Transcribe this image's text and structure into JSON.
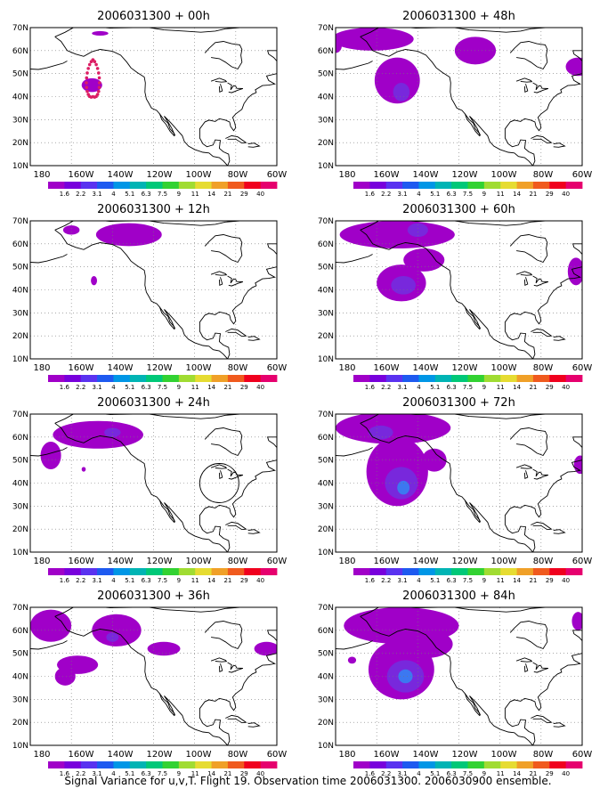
{
  "panels": [
    {
      "title": "2006031300 + 00h",
      "blobs": [
        {
          "lon": -150,
          "lat": 45,
          "rx": 5,
          "ry": 3,
          "lvl": 0
        },
        {
          "lon": -146,
          "lat": 67.5,
          "rx": 4,
          "ry": 1,
          "lvl": 0
        }
      ],
      "track": true
    },
    {
      "title": "2006031300 + 12h",
      "blobs": [
        {
          "lon": -132,
          "lat": 64,
          "rx": 16,
          "ry": 5,
          "lvl": 0
        },
        {
          "lon": -160,
          "lat": 66,
          "rx": 4,
          "ry": 2,
          "lvl": 0
        },
        {
          "lon": -149,
          "lat": 44,
          "rx": 1.5,
          "ry": 2,
          "lvl": 0
        }
      ]
    },
    {
      "title": "2006031300 + 24h",
      "blobs": [
        {
          "lon": -147,
          "lat": 61,
          "rx": 22,
          "ry": 6,
          "lvl": 0
        },
        {
          "lon": -140,
          "lat": 62,
          "rx": 4,
          "ry": 2,
          "lvl": 1
        },
        {
          "lon": -170,
          "lat": 52,
          "rx": 5,
          "ry": 6,
          "lvl": 0
        },
        {
          "lon": -154,
          "lat": 46,
          "rx": 1,
          "ry": 1,
          "lvl": 0
        }
      ],
      "circle": true
    },
    {
      "title": "2006031300 + 36h",
      "blobs": [
        {
          "lon": -170,
          "lat": 62,
          "rx": 10,
          "ry": 7,
          "lvl": 0
        },
        {
          "lon": -138,
          "lat": 60,
          "rx": 12,
          "ry": 7,
          "lvl": 0
        },
        {
          "lon": -140,
          "lat": 57,
          "rx": 3,
          "ry": 2,
          "lvl": 1
        },
        {
          "lon": -157,
          "lat": 45,
          "rx": 10,
          "ry": 4,
          "lvl": 0
        },
        {
          "lon": -163,
          "lat": 40,
          "rx": 5,
          "ry": 4,
          "lvl": 0
        },
        {
          "lon": -115,
          "lat": 52,
          "rx": 8,
          "ry": 3,
          "lvl": 0
        },
        {
          "lon": -65,
          "lat": 52,
          "rx": 6,
          "ry": 3,
          "lvl": 0
        }
      ]
    },
    {
      "title": "2006031300 + 48h",
      "blobs": [
        {
          "lon": -162,
          "lat": 65,
          "rx": 20,
          "ry": 5,
          "lvl": 0
        },
        {
          "lon": -150,
          "lat": 47,
          "rx": 11,
          "ry": 10,
          "lvl": 0
        },
        {
          "lon": -148,
          "lat": 42,
          "rx": 4,
          "ry": 4,
          "lvl": 1
        },
        {
          "lon": -112,
          "lat": 60,
          "rx": 10,
          "ry": 6,
          "lvl": 0
        },
        {
          "lon": -62,
          "lat": 53,
          "rx": 6,
          "ry": 4,
          "lvl": 0
        },
        {
          "lon": -180,
          "lat": 62,
          "rx": 3,
          "ry": 3,
          "lvl": 0
        }
      ]
    },
    {
      "title": "2006031300 + 60h",
      "blobs": [
        {
          "lon": -150,
          "lat": 64,
          "rx": 28,
          "ry": 6,
          "lvl": 0
        },
        {
          "lon": -148,
          "lat": 43,
          "rx": 12,
          "ry": 8,
          "lvl": 0
        },
        {
          "lon": -147,
          "lat": 42,
          "rx": 6,
          "ry": 4,
          "lvl": 1
        },
        {
          "lon": -140,
          "lat": 66,
          "rx": 5,
          "ry": 3,
          "lvl": 1
        },
        {
          "lon": -137,
          "lat": 53,
          "rx": 10,
          "ry": 5,
          "lvl": 0
        },
        {
          "lon": -63,
          "lat": 48,
          "rx": 4,
          "ry": 6,
          "lvl": 0
        }
      ]
    },
    {
      "title": "2006031300 + 72h",
      "blobs": [
        {
          "lon": -152,
          "lat": 64,
          "rx": 28,
          "ry": 7,
          "lvl": 0
        },
        {
          "lon": -150,
          "lat": 45,
          "rx": 15,
          "ry": 15,
          "lvl": 0
        },
        {
          "lon": -148,
          "lat": 40,
          "rx": 8,
          "ry": 7,
          "lvl": 1
        },
        {
          "lon": -147,
          "lat": 38,
          "rx": 3,
          "ry": 3,
          "lvl": 2
        },
        {
          "lon": -158,
          "lat": 62,
          "rx": 6,
          "ry": 3,
          "lvl": 1
        },
        {
          "lon": -132,
          "lat": 50,
          "rx": 6,
          "ry": 5,
          "lvl": 0
        },
        {
          "lon": -61,
          "lat": 48,
          "rx": 3,
          "ry": 4,
          "lvl": 0
        }
      ]
    },
    {
      "title": "2006031300 + 84h",
      "blobs": [
        {
          "lon": -148,
          "lat": 62,
          "rx": 28,
          "ry": 8,
          "lvl": 0
        },
        {
          "lon": -148,
          "lat": 43,
          "rx": 16,
          "ry": 13,
          "lvl": 0
        },
        {
          "lon": -146,
          "lat": 40,
          "rx": 9,
          "ry": 7,
          "lvl": 1
        },
        {
          "lon": -146,
          "lat": 40,
          "rx": 3.5,
          "ry": 3,
          "lvl": 2
        },
        {
          "lon": -135,
          "lat": 54,
          "rx": 12,
          "ry": 6,
          "lvl": 0
        },
        {
          "lon": -62,
          "lat": 64,
          "rx": 3,
          "ry": 4,
          "lvl": 0
        },
        {
          "lon": -172,
          "lat": 47,
          "rx": 2,
          "ry": 1.5,
          "lvl": 0
        }
      ]
    }
  ],
  "xticks": [
    "180",
    "160W",
    "140W",
    "120W",
    "100W",
    "80W",
    "60W"
  ],
  "yticks": [
    "10N",
    "20N",
    "30N",
    "40N",
    "50N",
    "60N",
    "70N"
  ],
  "colorbar": {
    "labels": [
      "1.6",
      "2.2",
      "3.1",
      "4",
      "5.1",
      "6.3",
      "7.5",
      "9",
      "11",
      "14",
      "21",
      "29",
      "40"
    ],
    "colors": [
      "#a000c8",
      "#7800dc",
      "#5a32f0",
      "#1e5af0",
      "#0096e6",
      "#00b4b4",
      "#00c878",
      "#32d232",
      "#a0dc32",
      "#e6dc32",
      "#f0a028",
      "#f05a1e",
      "#f0001e",
      "#e6006e"
    ]
  },
  "fill_colors": [
    "#a000c8",
    "#7828dc",
    "#3c78f0"
  ],
  "caption": "Signal Variance for u,v,T. Flight 19. Observation time 2006031300. 2006030900 ensemble."
}
